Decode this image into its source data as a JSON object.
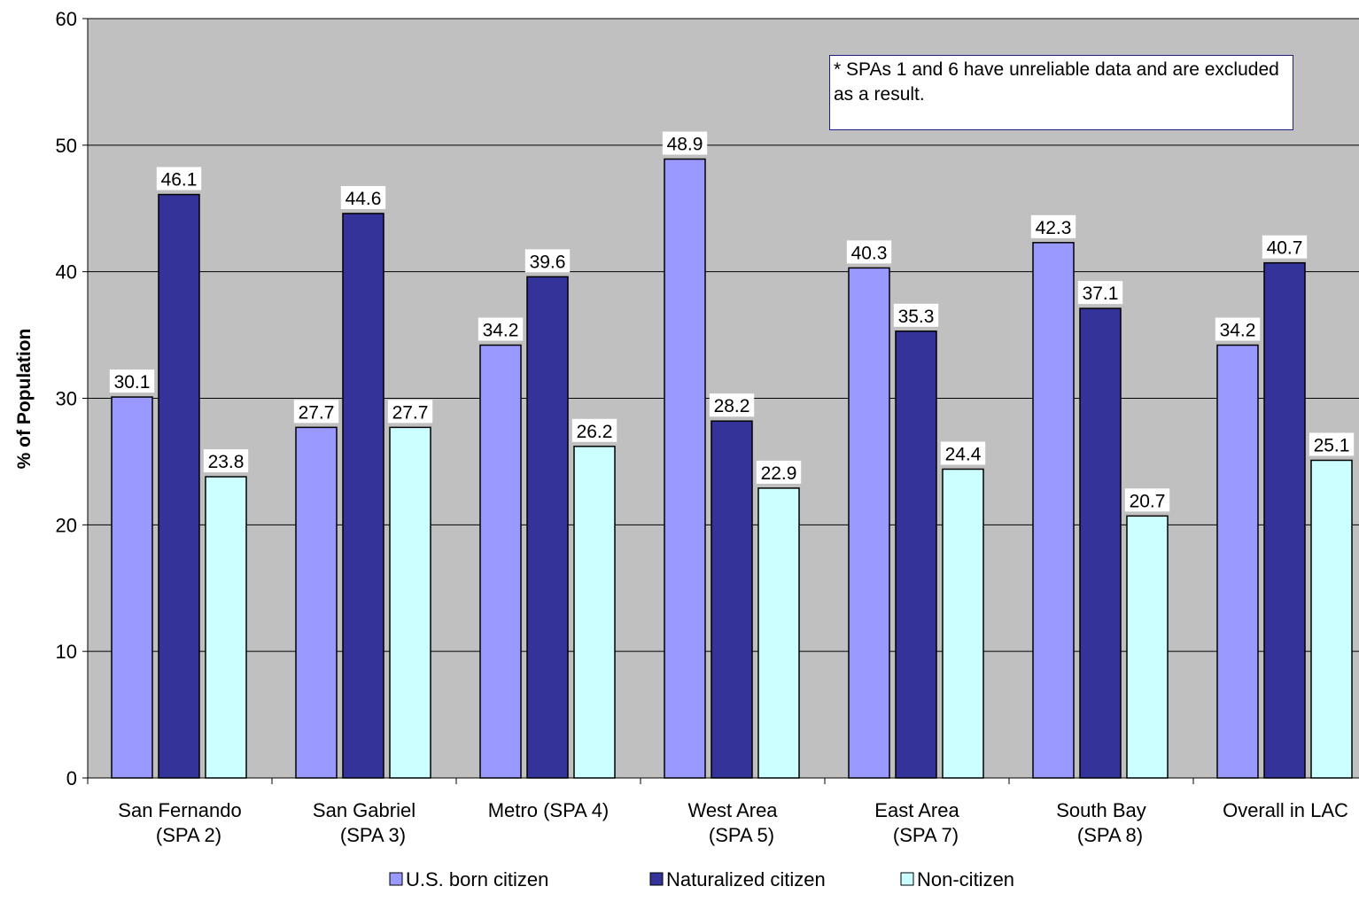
{
  "chart_data": {
    "type": "bar",
    "title": "",
    "ylabel": "% of Population",
    "xlabel": "",
    "ylim": [
      0,
      60
    ],
    "yticks": [
      0,
      10,
      20,
      30,
      40,
      50,
      60
    ],
    "grid": true,
    "legend_position": "bottom",
    "categories": [
      [
        "San Fernando",
        "(SPA 2)"
      ],
      [
        "San Gabriel",
        "(SPA 3)"
      ],
      [
        "Metro (SPA 4)"
      ],
      [
        "West Area",
        "(SPA 5)"
      ],
      [
        "East Area",
        "(SPA 7)"
      ],
      [
        "South Bay",
        "(SPA 8)"
      ],
      [
        "Overall in LAC"
      ]
    ],
    "series": [
      {
        "name": "U.S. born citizen",
        "color": "#9999ff",
        "values": [
          30.1,
          27.7,
          34.2,
          48.9,
          40.3,
          42.3,
          34.2
        ]
      },
      {
        "name": "Naturalized citizen",
        "color": "#333399",
        "values": [
          46.1,
          44.6,
          39.6,
          28.2,
          35.3,
          37.1,
          40.7
        ]
      },
      {
        "name": "Non-citizen",
        "color": "#ccffff",
        "values": [
          23.8,
          27.7,
          26.2,
          22.9,
          24.4,
          20.7,
          25.1
        ]
      }
    ],
    "annotation": "* SPAs 1 and 6 have unreliable data and are excluded as a result.",
    "plot_background": "#c0c0c0"
  }
}
